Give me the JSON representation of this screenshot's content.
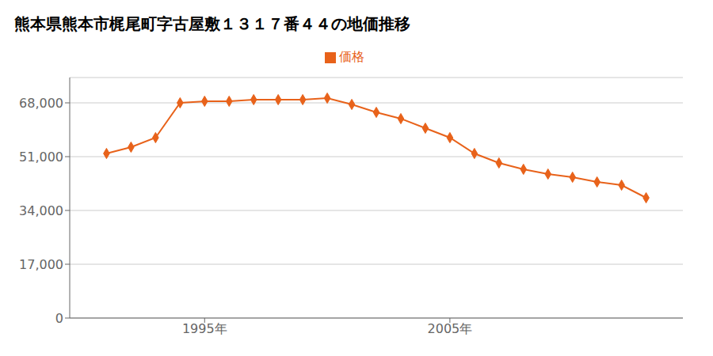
{
  "chart_data": {
    "type": "line",
    "title": "熊本県熊本市梶尾町字古屋敷１３１７番４４の地価推移",
    "x": [
      1991,
      1992,
      1993,
      1994,
      1995,
      1996,
      1997,
      1998,
      1999,
      2000,
      2001,
      2002,
      2003,
      2004,
      2005,
      2006,
      2007,
      2008,
      2009,
      2010,
      2011,
      2012,
      2013
    ],
    "series": [
      {
        "name": "価格",
        "color": "#E8621A",
        "marker": "diamond",
        "line_style": "solid",
        "values": [
          52000,
          54000,
          57000,
          68000,
          68500,
          68500,
          69000,
          69000,
          69000,
          69500,
          67500,
          65000,
          63000,
          60000,
          57000,
          52000,
          49000,
          47000,
          45500,
          44500,
          43000,
          42000,
          38000
        ]
      }
    ],
    "xlim": [
      1989.5,
      2014.5
    ],
    "xticks": [
      {
        "value": 1995,
        "label": "1995年"
      },
      {
        "value": 2005,
        "label": "2005年"
      }
    ],
    "ylim": [
      0,
      76000
    ],
    "yticks": [
      0,
      {
        "value": 17000,
        "label": "17,000"
      },
      {
        "value": 34000,
        "label": "34,000"
      },
      {
        "value": 51000,
        "label": "51,000"
      },
      {
        "value": 68000,
        "label": "68,000"
      }
    ],
    "grid": true,
    "legend": "top"
  }
}
